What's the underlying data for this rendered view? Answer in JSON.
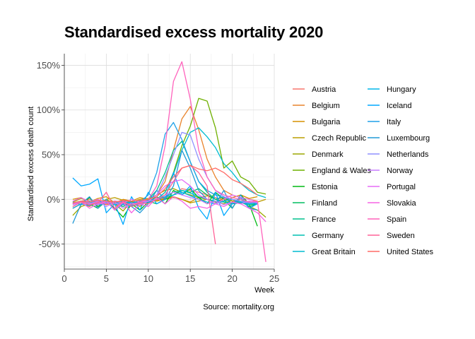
{
  "chart_data": {
    "type": "line",
    "title": "Standardised excess mortality 2020",
    "xlabel": "Week",
    "ylabel": "Standardised excess death count",
    "caption": "Source: mortality.org",
    "xlim": [
      0,
      25
    ],
    "ylim": [
      -0.78,
      1.63
    ],
    "x_ticks": [
      0,
      5,
      10,
      15,
      20,
      25
    ],
    "x_tick_labels": [
      "0",
      "5",
      "10",
      "15",
      "20",
      "25"
    ],
    "y_ticks": [
      -0.5,
      0,
      0.5,
      1.0,
      1.5
    ],
    "y_tick_labels": [
      "-50%",
      "0%",
      "50%",
      "100%",
      "150%"
    ],
    "grid": true,
    "legend_position": "right",
    "series": [
      {
        "name": "Austria",
        "color": "#F8766D",
        "x": [
          1,
          2,
          3,
          4,
          5,
          6,
          7,
          8,
          9,
          10,
          11,
          12,
          13,
          14,
          15,
          16,
          17,
          18,
          19,
          20,
          21,
          22,
          23
        ],
        "values": [
          -0.05,
          -0.02,
          0.0,
          -0.05,
          -0.03,
          -0.06,
          -0.03,
          -0.05,
          -0.04,
          -0.02,
          -0.01,
          0.02,
          0.05,
          0.12,
          0.1,
          0.08,
          0.05,
          0.02,
          0.0,
          -0.02,
          -0.03,
          -0.04,
          -0.05
        ]
      },
      {
        "name": "Belgium",
        "color": "#E9842C",
        "x": [
          1,
          2,
          3,
          4,
          5,
          6,
          7,
          8,
          9,
          10,
          11,
          12,
          13,
          14,
          15,
          16,
          17,
          18,
          19,
          20,
          21,
          22,
          23
        ],
        "values": [
          -0.1,
          -0.05,
          -0.08,
          -0.03,
          -0.06,
          -0.04,
          -0.02,
          -0.05,
          -0.03,
          -0.01,
          0.05,
          0.2,
          0.55,
          0.9,
          1.04,
          0.78,
          0.45,
          0.25,
          0.1,
          0.05,
          0.02,
          0.0,
          -0.02
        ]
      },
      {
        "name": "Bulgaria",
        "color": "#D69100",
        "x": [
          1,
          2,
          3,
          4,
          5,
          6,
          7,
          8,
          9,
          10,
          11,
          12,
          13,
          14,
          15,
          16,
          17,
          18,
          19,
          20,
          21,
          22,
          23
        ],
        "values": [
          0.0,
          0.02,
          -0.03,
          0.01,
          0.03,
          -0.04,
          0.0,
          -0.02,
          0.02,
          0.0,
          -0.02,
          0.01,
          0.03,
          0.0,
          -0.03,
          0.02,
          0.04,
          0.0,
          -0.02,
          0.02,
          0.05,
          0.01,
          0.03
        ]
      },
      {
        "name": "Czech Republic",
        "color": "#BC9D00",
        "x": [
          1,
          2,
          3,
          4,
          5,
          6,
          7,
          8,
          9,
          10,
          11,
          12,
          13,
          14,
          15,
          16,
          17,
          18,
          19,
          20,
          21,
          22,
          23,
          24
        ],
        "values": [
          -0.03,
          0.01,
          -0.02,
          -0.05,
          0.0,
          0.02,
          -0.01,
          -0.03,
          0.0,
          0.01,
          -0.02,
          0.0,
          0.02,
          0.0,
          -0.04,
          -0.02,
          0.0,
          -0.03,
          0.01,
          -0.02,
          0.0,
          -0.05,
          -0.03,
          0.0
        ]
      },
      {
        "name": "Denmark",
        "color": "#9CA700",
        "x": [
          1,
          2,
          3,
          4,
          5,
          6,
          7,
          8,
          9,
          10,
          11,
          12,
          13,
          14,
          15,
          16,
          17,
          18,
          19,
          20,
          21,
          22,
          23,
          24
        ],
        "values": [
          -0.18,
          -0.08,
          -0.05,
          -0.1,
          0.0,
          -0.05,
          -0.13,
          -0.02,
          -0.08,
          0.0,
          0.05,
          0.1,
          0.12,
          0.08,
          0.05,
          0.02,
          0.0,
          -0.03,
          -0.05,
          0.0,
          -0.02,
          -0.08,
          -0.12,
          -0.2
        ]
      },
      {
        "name": "England & Wales",
        "color": "#6FB000",
        "x": [
          1,
          2,
          3,
          4,
          5,
          6,
          7,
          8,
          9,
          10,
          11,
          12,
          13,
          14,
          15,
          16,
          17,
          18,
          19,
          20,
          21,
          22,
          23,
          24
        ],
        "values": [
          -0.05,
          -0.02,
          -0.03,
          -0.06,
          -0.04,
          -0.06,
          -0.04,
          -0.08,
          -0.05,
          -0.03,
          0.0,
          0.08,
          0.3,
          0.6,
          0.82,
          1.13,
          1.1,
          0.8,
          0.35,
          0.43,
          0.25,
          0.2,
          0.08,
          0.06
        ]
      },
      {
        "name": "Estonia",
        "color": "#00B813",
        "x": [
          1,
          2,
          3,
          4,
          5,
          6,
          7,
          8,
          9,
          10,
          11,
          12,
          13,
          14,
          15,
          16,
          17,
          18,
          19,
          20,
          21,
          22,
          23
        ],
        "values": [
          -0.1,
          -0.05,
          0.02,
          -0.08,
          -0.02,
          -0.1,
          -0.2,
          -0.05,
          -0.12,
          -0.03,
          0.03,
          -0.05,
          0.1,
          0.05,
          0.12,
          0.02,
          -0.05,
          0.08,
          0.0,
          -0.1,
          0.05,
          -0.05,
          -0.3
        ]
      },
      {
        "name": "Finland",
        "color": "#00BD61",
        "x": [
          1,
          2,
          3,
          4,
          5,
          6,
          7,
          8,
          9,
          10,
          11,
          12,
          13,
          14,
          15,
          16,
          17,
          18,
          19,
          20,
          21,
          22,
          23
        ],
        "values": [
          -0.08,
          -0.03,
          -0.05,
          -0.1,
          -0.02,
          -0.05,
          -0.08,
          -0.03,
          -0.06,
          -0.02,
          -0.05,
          0.0,
          0.05,
          0.1,
          0.08,
          0.12,
          0.05,
          0.0,
          0.03,
          -0.05,
          -0.02,
          -0.08,
          -0.05
        ]
      },
      {
        "name": "France",
        "color": "#00C08E",
        "x": [
          1,
          2,
          3,
          4,
          5,
          6,
          7,
          8,
          9,
          10,
          11,
          12,
          13,
          14,
          15,
          16,
          17,
          18,
          19,
          20,
          21,
          22,
          23
        ],
        "values": [
          -0.05,
          -0.03,
          -0.04,
          -0.02,
          -0.05,
          -0.03,
          -0.06,
          -0.04,
          -0.02,
          0.0,
          0.1,
          0.3,
          0.55,
          0.65,
          0.42,
          0.2,
          0.08,
          0.0,
          -0.03,
          -0.05,
          -0.04,
          -0.06,
          -0.05
        ]
      },
      {
        "name": "Germany",
        "color": "#00C0B2",
        "x": [
          1,
          2,
          3,
          4,
          5,
          6,
          7,
          8,
          9,
          10,
          11,
          12,
          13,
          14,
          15,
          16,
          17,
          18,
          19,
          20,
          21,
          22,
          23
        ],
        "values": [
          -0.04,
          -0.02,
          -0.05,
          -0.03,
          -0.04,
          -0.02,
          -0.03,
          -0.05,
          -0.02,
          -0.01,
          0.0,
          0.03,
          0.08,
          0.1,
          0.07,
          0.03,
          0.0,
          -0.02,
          -0.03,
          -0.04,
          -0.03,
          -0.05,
          -0.04
        ]
      },
      {
        "name": "Great Britain",
        "color": "#00BCD1",
        "x": [
          1,
          2,
          3,
          4,
          5,
          6,
          7,
          8,
          9,
          10,
          11,
          12,
          13,
          14,
          15,
          16,
          17,
          18,
          19,
          20,
          21,
          22,
          23,
          24
        ],
        "values": [
          -0.05,
          -0.02,
          -0.03,
          -0.06,
          -0.04,
          -0.06,
          -0.04,
          -0.07,
          -0.05,
          -0.03,
          0.0,
          0.08,
          0.28,
          0.55,
          0.75,
          0.8,
          0.7,
          0.58,
          0.4,
          0.3,
          0.18,
          0.1,
          0.05,
          0.02
        ]
      },
      {
        "name": "Hungary",
        "color": "#00B5EA",
        "x": [
          1,
          2,
          3,
          4,
          5,
          6,
          7,
          8,
          9,
          10,
          11,
          12,
          13,
          14,
          15,
          16,
          17,
          18,
          19,
          20,
          21,
          22,
          23
        ],
        "values": [
          -0.03,
          -0.06,
          -0.02,
          -0.05,
          -0.03,
          -0.05,
          -0.02,
          -0.04,
          -0.06,
          -0.02,
          0.0,
          0.03,
          0.05,
          0.08,
          0.04,
          0.0,
          -0.03,
          -0.05,
          -0.02,
          0.0,
          -0.03,
          -0.05,
          -0.03
        ]
      },
      {
        "name": "Iceland",
        "color": "#00A9FF",
        "x": [
          1,
          2,
          3,
          4,
          5,
          6,
          7,
          8,
          9,
          10,
          11,
          12,
          13,
          14,
          15,
          16,
          17,
          18,
          19,
          20,
          21,
          22,
          23
        ],
        "values": [
          0.24,
          0.15,
          0.17,
          0.23,
          -0.15,
          -0.05,
          -0.28,
          0.03,
          -0.12,
          0.08,
          -0.05,
          0.0,
          0.3,
          0.05,
          0.15,
          -0.1,
          -0.22,
          0.08,
          -0.18,
          -0.05,
          0.02,
          -0.1,
          -0.05
        ]
      },
      {
        "name": "Italy",
        "color": "#1FA1E8",
        "x": [
          1,
          2,
          3,
          4,
          5,
          6,
          7,
          8,
          9,
          10,
          11,
          12,
          13,
          14,
          15,
          16,
          17,
          18,
          19,
          20,
          21,
          22,
          23
        ],
        "values": [
          -0.1,
          -0.05,
          -0.07,
          -0.02,
          -0.04,
          -0.03,
          -0.06,
          -0.05,
          -0.03,
          0.05,
          0.3,
          0.73,
          0.86,
          0.67,
          0.42,
          0.2,
          0.1,
          0.05,
          0.02,
          0.0,
          -0.02,
          -0.03,
          -0.05
        ]
      },
      {
        "name": "Luxembourg",
        "color": "#229AD6",
        "x": [
          1,
          2,
          3,
          4,
          5,
          6,
          7,
          8,
          9,
          10,
          11,
          12,
          13,
          14,
          15,
          16,
          17,
          18,
          19,
          20,
          21,
          22,
          23
        ],
        "values": [
          -0.27,
          -0.05,
          0.03,
          -0.1,
          0.0,
          -0.12,
          -0.05,
          -0.08,
          -0.15,
          -0.05,
          0.1,
          0.0,
          0.15,
          0.55,
          0.35,
          0.1,
          0.0,
          -0.05,
          0.1,
          -0.1,
          0.05,
          -0.1,
          -0.12
        ]
      },
      {
        "name": "Netherlands",
        "color": "#8F91FF",
        "x": [
          1,
          2,
          3,
          4,
          5,
          6,
          7,
          8,
          9,
          10,
          11,
          12,
          13,
          14,
          15,
          16,
          17,
          18,
          19,
          20,
          21,
          22,
          23
        ],
        "values": [
          -0.05,
          -0.02,
          -0.04,
          -0.06,
          -0.03,
          -0.05,
          -0.04,
          -0.06,
          -0.03,
          -0.02,
          0.05,
          0.25,
          0.5,
          0.75,
          0.72,
          0.45,
          0.25,
          0.1,
          0.03,
          0.0,
          -0.02,
          -0.04,
          -0.03
        ]
      },
      {
        "name": "Norway",
        "color": "#C77CFF",
        "x": [
          1,
          2,
          3,
          4,
          5,
          6,
          7,
          8,
          9,
          10,
          11,
          12,
          13,
          14,
          15,
          16,
          17,
          18,
          19,
          20,
          21,
          22,
          23
        ],
        "values": [
          -0.06,
          -0.03,
          -0.05,
          -0.02,
          -0.08,
          -0.03,
          -0.1,
          -0.04,
          -0.06,
          -0.02,
          0.0,
          0.05,
          0.08,
          0.05,
          0.02,
          0.0,
          -0.05,
          -0.02,
          -0.06,
          -0.03,
          -0.05,
          -0.02,
          -0.04
        ]
      },
      {
        "name": "Portugal",
        "color": "#E56CF6",
        "x": [
          1,
          2,
          3,
          4,
          5,
          6,
          7,
          8,
          9,
          10,
          11,
          12,
          13,
          14,
          15,
          16,
          17,
          18,
          19,
          20,
          21,
          22,
          23
        ],
        "values": [
          -0.02,
          0.02,
          -0.03,
          0.0,
          -0.05,
          -0.02,
          -0.04,
          0.0,
          -0.03,
          -0.02,
          0.05,
          0.15,
          0.2,
          0.22,
          0.15,
          0.05,
          0.0,
          -0.05,
          0.0,
          0.05,
          0.02,
          0.0,
          -0.03
        ]
      },
      {
        "name": "Slovakia",
        "color": "#F564E3",
        "x": [
          1,
          2,
          3,
          4,
          5,
          6,
          7,
          8,
          9,
          10,
          11,
          12,
          13,
          14,
          15,
          16,
          17,
          18,
          19,
          20,
          21,
          22,
          23,
          24
        ],
        "values": [
          -0.08,
          -0.03,
          -0.1,
          -0.05,
          -0.02,
          -0.12,
          -0.03,
          -0.15,
          -0.05,
          -0.08,
          0.02,
          -0.05,
          0.03,
          -0.02,
          -0.1,
          -0.08,
          -0.1,
          -0.05,
          -0.08,
          -0.03,
          -0.05,
          -0.1,
          -0.15,
          -0.25
        ]
      },
      {
        "name": "Spain",
        "color": "#FF62BC",
        "x": [
          1,
          2,
          3,
          4,
          5,
          6,
          7,
          8,
          9,
          10,
          11,
          12,
          13,
          14,
          15,
          16,
          17,
          18,
          19,
          20,
          21,
          22,
          23,
          24
        ],
        "values": [
          -0.05,
          -0.02,
          -0.06,
          -0.03,
          -0.05,
          -0.02,
          -0.04,
          -0.06,
          -0.03,
          0.0,
          0.15,
          0.6,
          1.32,
          1.54,
          1.12,
          0.55,
          0.25,
          0.1,
          0.05,
          0.02,
          0.0,
          -0.03,
          -0.02,
          -0.7
        ]
      },
      {
        "name": "Sweden",
        "color": "#FF6398",
        "x": [
          1,
          2,
          3,
          4,
          5,
          6,
          7,
          8,
          9,
          10,
          11,
          12,
          13,
          14,
          15,
          16,
          17,
          18
        ],
        "values": [
          -0.08,
          -0.03,
          -0.06,
          -0.04,
          0.08,
          -0.1,
          -0.02,
          -0.08,
          -0.04,
          -0.05,
          0.0,
          0.05,
          0.2,
          0.35,
          0.38,
          0.3,
          0.15,
          -0.5
        ]
      },
      {
        "name": "United States",
        "color": "#FF6C67",
        "x": [
          1,
          2,
          3,
          4,
          5,
          6,
          7,
          8,
          9,
          10,
          11,
          12,
          13,
          14,
          15,
          16,
          17,
          18,
          19,
          20,
          21,
          22,
          23
        ],
        "values": [
          -0.04,
          -0.02,
          -0.03,
          -0.01,
          -0.02,
          -0.03,
          -0.01,
          -0.02,
          -0.01,
          0.0,
          0.03,
          0.12,
          0.25,
          0.35,
          0.38,
          0.34,
          0.32,
          0.35,
          0.3,
          0.22,
          0.18,
          0.12,
          0.05
        ]
      }
    ]
  }
}
